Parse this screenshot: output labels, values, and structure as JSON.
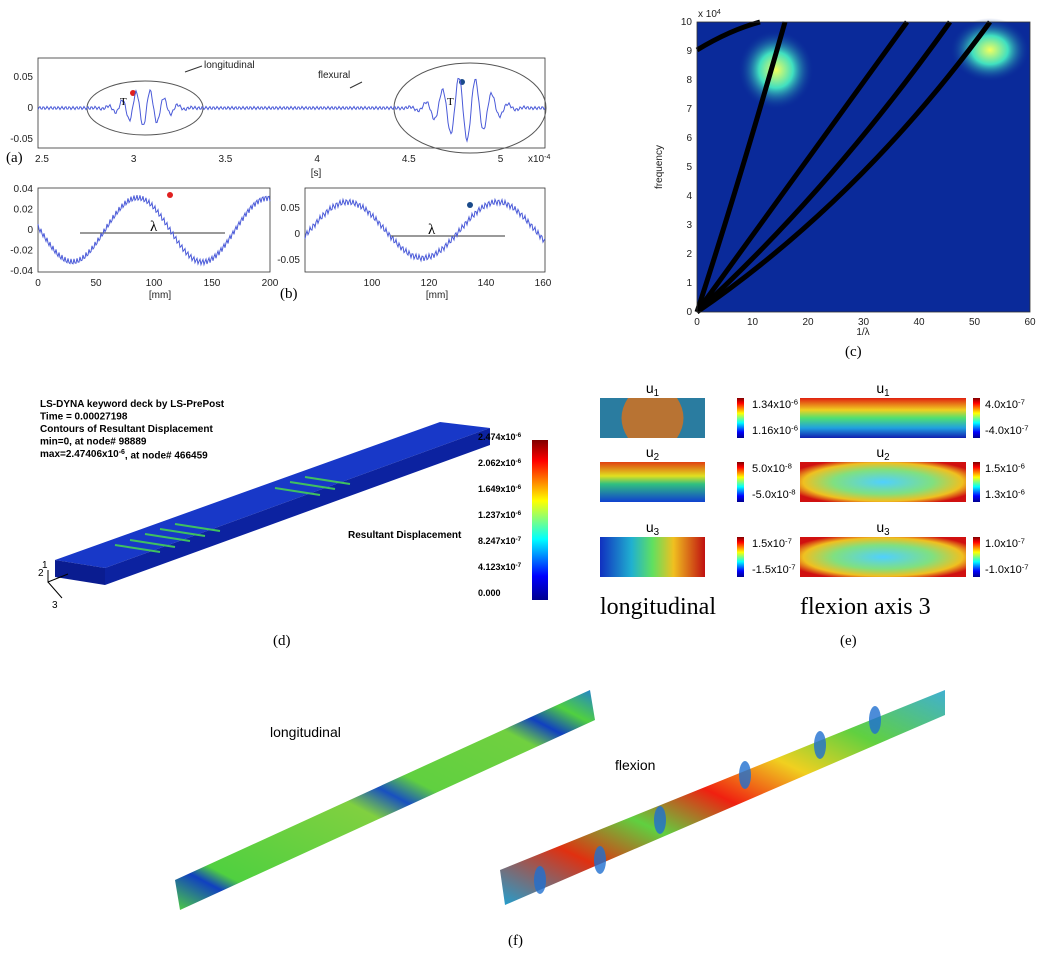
{
  "panels": {
    "a": {
      "label": "(a)",
      "yticks": [
        "0.05",
        "0",
        "-0.05"
      ],
      "xticks": [
        "2.5",
        "3",
        "3.5",
        "4",
        "4.5",
        "5"
      ],
      "x_multiplier": {
        "base": "x10",
        "exp": "-4"
      },
      "xlabel": "[s]",
      "annotations": [
        "longitudinal",
        "flexural"
      ],
      "period_labels": [
        "T",
        "T"
      ]
    },
    "b": {
      "label": "(b)",
      "left": {
        "yticks": [
          "0.04",
          "0.02",
          "0",
          "-0.02",
          "-0.04"
        ],
        "xticks": [
          "0",
          "50",
          "100",
          "150",
          "200"
        ],
        "xlabel": "[mm]",
        "wavelength": "λ"
      },
      "right": {
        "yticks": [
          "0.05",
          "0",
          "-0.05"
        ],
        "xticks": [
          "100",
          "120",
          "140",
          "160"
        ],
        "xlabel": "[mm]",
        "wavelength": "λ"
      }
    },
    "c": {
      "label": "(c)",
      "yticks": [
        "0",
        "1",
        "2",
        "3",
        "4",
        "5",
        "6",
        "7",
        "8",
        "9",
        "10"
      ],
      "y_multiplier": {
        "base": "x 10",
        "exp": "4"
      },
      "xticks": [
        "0",
        "10",
        "20",
        "30",
        "40",
        "50",
        "60"
      ],
      "xlabel": "1/λ",
      "ylabel": "frequency"
    },
    "d": {
      "label": "(d)",
      "header": [
        "LS-DYNA keyword deck by LS-PrePost",
        "Time =  0.00027198",
        "Contours of Resultant Displacement",
        " min=0, at node# 98889",
        {
          "base": " max=2.47406x10",
          "exp": "-6",
          "tail": ", at node# 466459"
        }
      ],
      "legend_title": "Resultant Displacement",
      "colorbar": [
        {
          "base": "2.474x10",
          "exp": "-6"
        },
        {
          "base": "2.062x10",
          "exp": "-6"
        },
        {
          "base": "1.649x10",
          "exp": "-6"
        },
        {
          "base": "1.237x10",
          "exp": "-6"
        },
        {
          "base": "8.247x10",
          "exp": "-7"
        },
        {
          "base": "4.123x10",
          "exp": "-7"
        },
        "0.000"
      ],
      "axes": [
        "2",
        "1",
        "3"
      ]
    },
    "e": {
      "label": "(e)",
      "columns": [
        {
          "title": "longitudinal",
          "maps": [
            {
              "name": {
                "base": "u",
                "sub": "1"
              },
              "max": {
                "base": "1.34x10",
                "exp": "-6"
              },
              "min": {
                "base": "1.16x10",
                "exp": "-6"
              }
            },
            {
              "name": {
                "base": "u",
                "sub": "2"
              },
              "max": {
                "base": "5.0x10",
                "exp": "-8"
              },
              "min": {
                "base": "-5.0x10",
                "exp": "-8"
              }
            },
            {
              "name": {
                "base": "u",
                "sub": "3"
              },
              "max": {
                "base": "1.5x10",
                "exp": "-7"
              },
              "min": {
                "base": "-1.5x10",
                "exp": "-7"
              }
            }
          ]
        },
        {
          "title": "flexion axis 3",
          "maps": [
            {
              "name": {
                "base": "u",
                "sub": "1"
              },
              "max": {
                "base": "4.0x10",
                "exp": "-7"
              },
              "min": {
                "base": "-4.0x10",
                "exp": "-7"
              }
            },
            {
              "name": {
                "base": "u",
                "sub": "2"
              },
              "max": {
                "base": "1.5x10",
                "exp": "-6"
              },
              "min": {
                "base": "1.3x10",
                "exp": "-6"
              }
            },
            {
              "name": {
                "base": "u",
                "sub": "3"
              },
              "max": {
                "base": "1.0x10",
                "exp": "-7"
              },
              "min": {
                "base": "-1.0x10",
                "exp": "-7"
              }
            }
          ]
        }
      ]
    },
    "f": {
      "label": "(f)",
      "beam_labels": [
        "longitudinal",
        "flexion"
      ]
    }
  }
}
